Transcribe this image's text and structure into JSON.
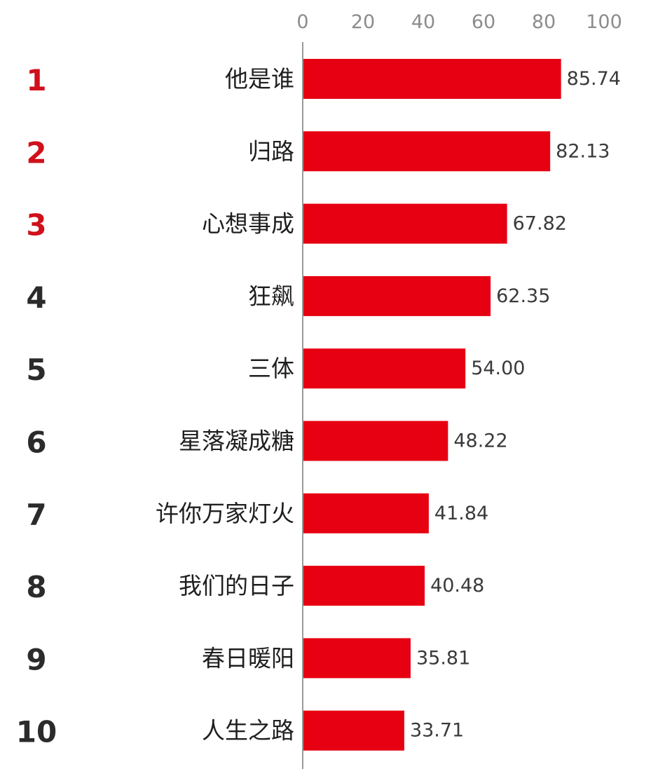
{
  "chart_data": {
    "type": "bar",
    "orientation": "horizontal",
    "title": "",
    "xlabel": "",
    "ylabel": "",
    "xlim": [
      0,
      100
    ],
    "x_ticks": [
      0,
      20,
      40,
      60,
      80,
      100
    ],
    "x_axis_position": "top",
    "grid": false,
    "legend": "none",
    "bar_color": "#e60012",
    "top_rank_color": "#d0101b",
    "rank_color": "#2b2b2b",
    "ranks": [
      "1",
      "2",
      "3",
      "4",
      "5",
      "6",
      "7",
      "8",
      "9",
      "10"
    ],
    "categories": [
      "他是谁",
      "归路",
      "心想事成",
      "狂飙",
      "三体",
      "星落凝成糖",
      "许你万家灯火",
      "我们的日子",
      "春日暖阳",
      "人生之路"
    ],
    "values": [
      85.74,
      82.13,
      67.82,
      62.35,
      54.0,
      48.22,
      41.84,
      40.48,
      35.81,
      33.71
    ],
    "value_labels": [
      "85.74",
      "82.13",
      "67.82",
      "62.35",
      "54.00",
      "48.22",
      "41.84",
      "40.48",
      "35.81",
      "33.71"
    ]
  }
}
